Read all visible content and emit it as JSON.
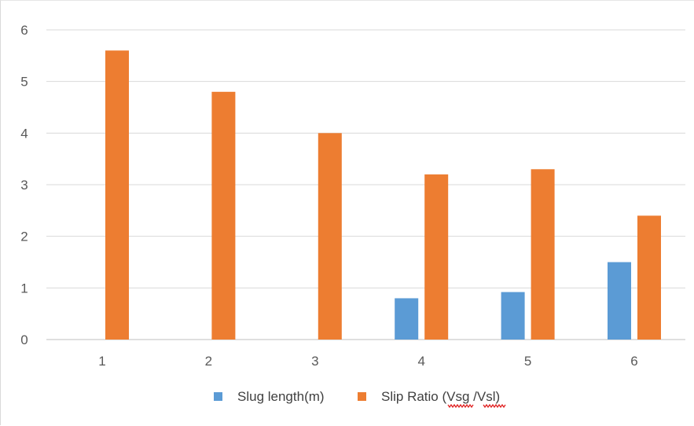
{
  "chart_data": {
    "type": "bar",
    "categories": [
      "1",
      "2",
      "3",
      "4",
      "5",
      "6"
    ],
    "series": [
      {
        "name": "Slug length(m)",
        "color": "#5b9bd5",
        "values": [
          null,
          null,
          null,
          0.8,
          0.92,
          1.5
        ]
      },
      {
        "name": "Slip Ratio (Vsg /Vsl)",
        "color": "#ed7d31",
        "values": [
          5.6,
          4.8,
          4.0,
          3.2,
          3.3,
          2.4
        ]
      }
    ],
    "y_ticks": [
      "0",
      "1",
      "2",
      "3",
      "4",
      "5",
      "6"
    ],
    "ylim": [
      0,
      6
    ],
    "grid": true,
    "legend_position": "bottom",
    "title": "",
    "xlabel": "",
    "ylabel": ""
  }
}
